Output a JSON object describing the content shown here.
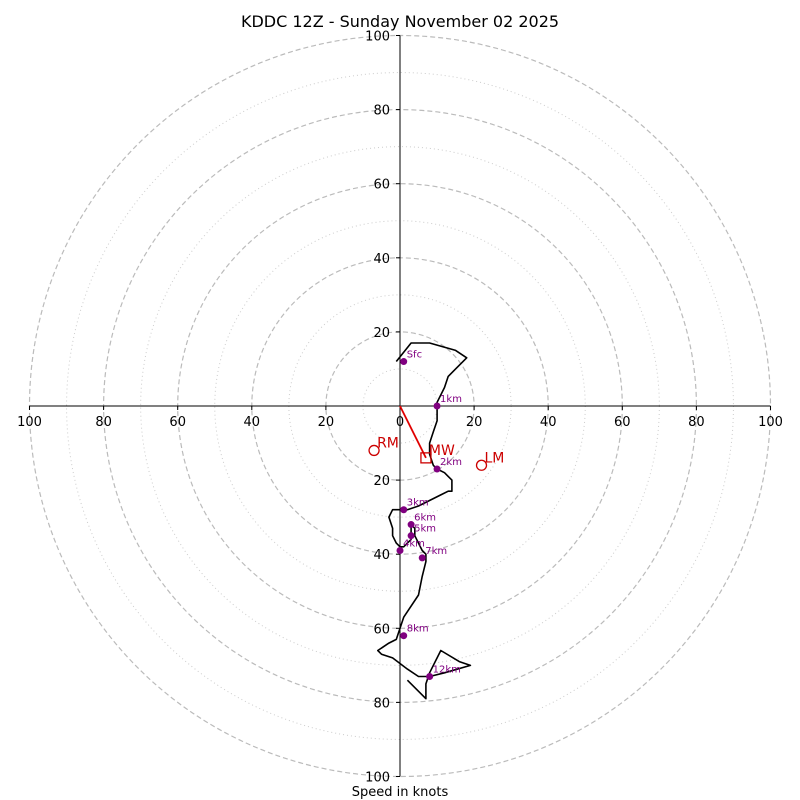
{
  "chart_data": {
    "type": "hodograph",
    "title": "KDDC 12Z - Sunday November 02 2025",
    "xlabel": "Speed in knots",
    "axis_range": [
      -100,
      100
    ],
    "major_rings": [
      20,
      40,
      60,
      80,
      100
    ],
    "minor_rings": [
      10,
      30,
      50,
      70,
      90
    ],
    "x_ticks": [
      "100",
      "80",
      "60",
      "40",
      "20",
      "0",
      "20",
      "40",
      "60",
      "80",
      "100"
    ],
    "y_ticks": [
      "100",
      "80",
      "60",
      "40",
      "20",
      "20",
      "40",
      "60",
      "80",
      "100"
    ],
    "colors": {
      "hodo_line": "#000000",
      "height_marker": "#800080",
      "motion": "#cc0000",
      "mean_wind_vector": "#e00000",
      "major_ring": "#bbbbbb",
      "minor_ring": "#cccccc"
    },
    "hodograph_trace": [
      [
        -1,
        12
      ],
      [
        3,
        17
      ],
      [
        8,
        17
      ],
      [
        15,
        15
      ],
      [
        18,
        13
      ],
      [
        15,
        10
      ],
      [
        13,
        8
      ],
      [
        12,
        5
      ],
      [
        10,
        1
      ],
      [
        10,
        -2
      ],
      [
        10,
        -4
      ],
      [
        9,
        -7
      ],
      [
        8,
        -10
      ],
      [
        8,
        -13
      ],
      [
        9,
        -16
      ],
      [
        10,
        -17
      ],
      [
        12,
        -18
      ],
      [
        13,
        -19
      ],
      [
        14,
        -20
      ],
      [
        14,
        -23
      ],
      [
        13,
        -23
      ],
      [
        11,
        -24
      ],
      [
        9,
        -25
      ],
      [
        5,
        -27
      ],
      [
        2,
        -28
      ],
      [
        -2,
        -28
      ],
      [
        -3,
        -30
      ],
      [
        -2,
        -33
      ],
      [
        -2,
        -35
      ],
      [
        -1,
        -37
      ],
      [
        0,
        -38
      ],
      [
        1,
        -38
      ],
      [
        2,
        -37
      ],
      [
        3,
        -36
      ],
      [
        3,
        -35
      ],
      [
        3,
        -33
      ],
      [
        3,
        -32
      ],
      [
        4,
        -33
      ],
      [
        4,
        -35
      ],
      [
        5,
        -37
      ],
      [
        6,
        -39
      ],
      [
        7,
        -40
      ],
      [
        7,
        -42
      ],
      [
        6,
        -46
      ],
      [
        5,
        -51
      ],
      [
        1,
        -57
      ],
      [
        -1,
        -63
      ],
      [
        -3,
        -64
      ],
      [
        -6,
        -66
      ],
      [
        -5,
        -67
      ],
      [
        -2,
        -68
      ],
      [
        2,
        -71
      ],
      [
        5,
        -73
      ],
      [
        8,
        -73
      ],
      [
        12,
        -72
      ],
      [
        19,
        -70
      ],
      [
        16,
        -69
      ],
      [
        11,
        -66
      ],
      [
        8,
        -72
      ],
      [
        7,
        -75
      ],
      [
        7,
        -79
      ],
      [
        2,
        -74
      ]
    ],
    "height_markers": [
      {
        "label": "Sfc",
        "u": 1,
        "v": 12
      },
      {
        "label": "1km",
        "u": 10,
        "v": 0
      },
      {
        "label": "2km",
        "u": 10,
        "v": -17
      },
      {
        "label": "3km",
        "u": 1,
        "v": -28
      },
      {
        "label": "4km",
        "u": 0,
        "v": -39
      },
      {
        "label": "5km",
        "u": 3,
        "v": -35
      },
      {
        "label": "6km",
        "u": 3,
        "v": -32
      },
      {
        "label": "7km",
        "u": 6,
        "v": -41
      },
      {
        "label": "8km",
        "u": 1,
        "v": -62
      },
      {
        "label": "12km",
        "u": 8,
        "v": -73
      }
    ],
    "storm_motion": [
      {
        "label": "RM",
        "u": -7,
        "v": -12,
        "marker": "circle"
      },
      {
        "label": "LM",
        "u": 22,
        "v": -16,
        "marker": "circle"
      },
      {
        "label": "MW",
        "u": 7,
        "v": -14,
        "marker": "square"
      }
    ],
    "mean_wind_vector": {
      "from": [
        0,
        0
      ],
      "to": [
        7,
        -14
      ]
    }
  }
}
